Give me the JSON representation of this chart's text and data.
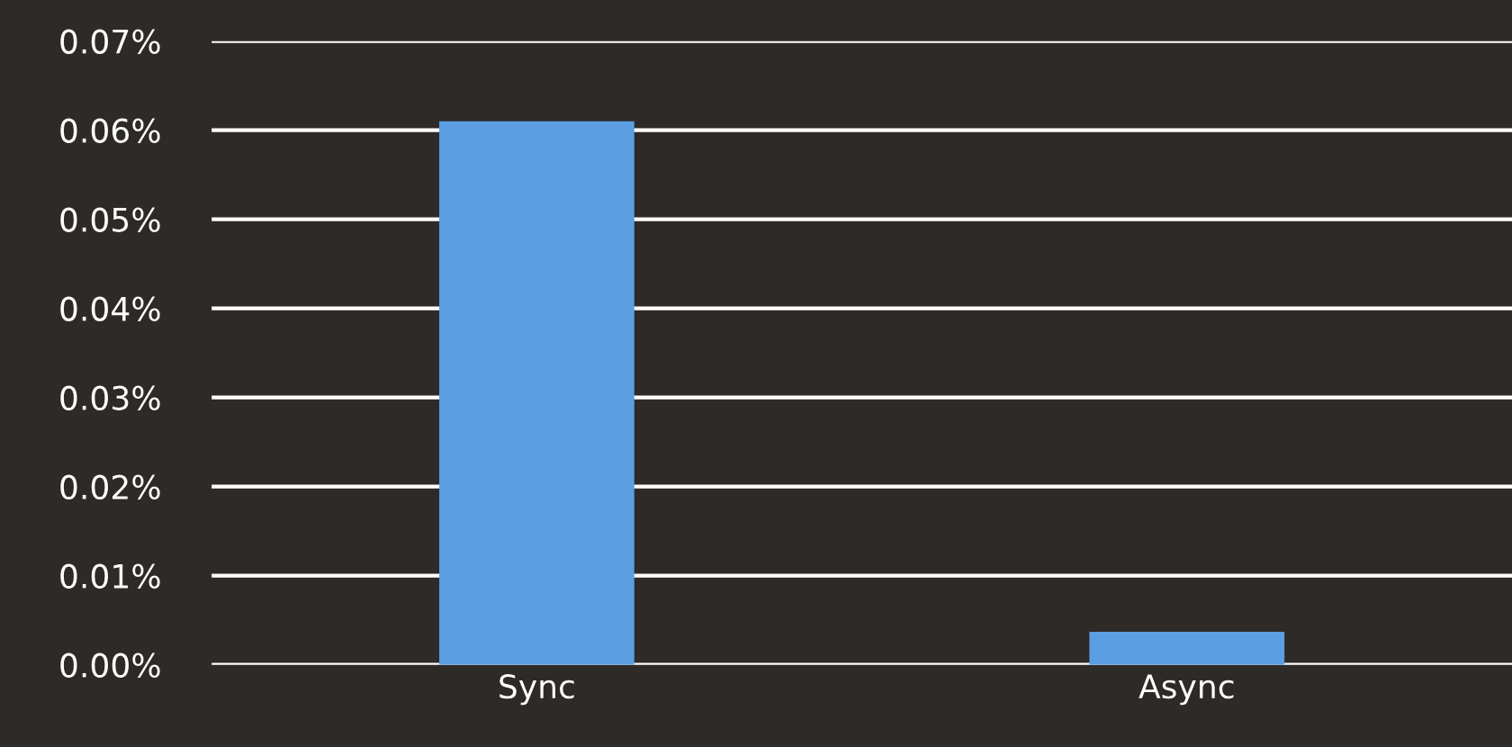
{
  "chart_data": {
    "type": "bar",
    "categories": [
      "Sync",
      "Async"
    ],
    "values": [
      0.061,
      0.0037
    ],
    "color": "#5b9fe2",
    "ylim": [
      0,
      0.07
    ],
    "yticks": [
      {
        "value": 0,
        "label": "0.00%"
      },
      {
        "value": 0.01,
        "label": "0.01%"
      },
      {
        "value": 0.02,
        "label": "0.02%"
      },
      {
        "value": 0.03,
        "label": "0.03%"
      },
      {
        "value": 0.04,
        "label": "0.04%"
      },
      {
        "value": 0.05,
        "label": "0.05%"
      },
      {
        "value": 0.06,
        "label": "0.06%"
      },
      {
        "value": 0.07,
        "label": "0.07%"
      }
    ],
    "grid": "y"
  }
}
